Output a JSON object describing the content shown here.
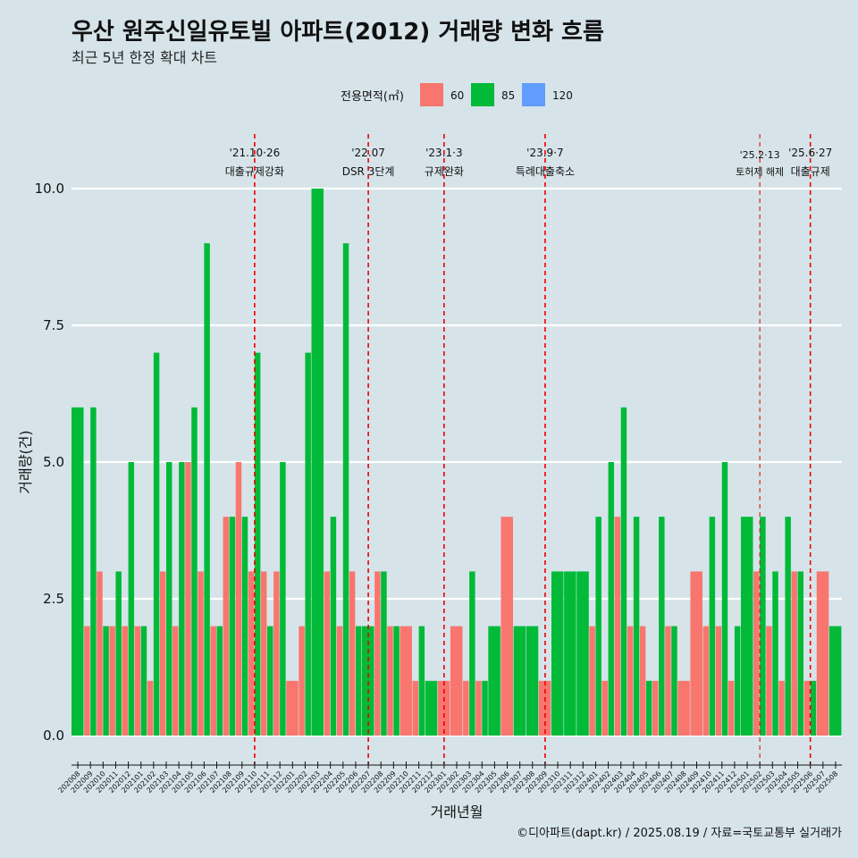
{
  "chart_data": {
    "type": "bar",
    "title": "우산 원주신일유토빌 아파트(2012) 거래량 변화 흐름",
    "subtitle": "최근 5년 한정 확대 차트",
    "xlabel": "거래년월",
    "ylabel": "거래량(건)",
    "ylim": [
      0,
      10.5
    ],
    "yticks": [
      "0.0",
      "2.5",
      "5.0",
      "7.5",
      "10.0"
    ],
    "ytick_values": [
      0,
      2.5,
      5,
      7.5,
      10
    ],
    "grid": true,
    "legend": {
      "title": "전용면적(㎡)",
      "placement": "top",
      "items": [
        {
          "name": "60",
          "color": "#f8766d"
        },
        {
          "name": "85",
          "color": "#00ba38"
        },
        {
          "name": "120",
          "color": "#619cff"
        }
      ]
    },
    "months": [
      "202008",
      "202009",
      "202010",
      "202011",
      "202012",
      "202101",
      "202102",
      "202103",
      "202104",
      "202105",
      "202106",
      "202107",
      "202108",
      "202109",
      "202110",
      "202111",
      "202112",
      "202201",
      "202202",
      "202203",
      "202204",
      "202205",
      "202206",
      "202207",
      "202208",
      "202209",
      "202210",
      "202211",
      "202212",
      "202301",
      "202302",
      "202303",
      "202304",
      "202305",
      "202306",
      "202307",
      "202308",
      "202309",
      "202310",
      "202311",
      "202312",
      "202401",
      "202402",
      "202403",
      "202404",
      "202405",
      "202406",
      "202407",
      "202408",
      "202409",
      "202410",
      "202411",
      "202412",
      "202501",
      "202502",
      "202503",
      "202504",
      "202505",
      "202506",
      "202507",
      "202508"
    ],
    "series": [
      {
        "name": "60",
        "values": [
          0,
          2,
          3,
          2,
          2,
          2,
          1,
          3,
          2,
          5,
          3,
          2,
          4,
          5,
          3,
          3,
          3,
          1,
          2,
          0,
          3,
          2,
          3,
          0,
          3,
          2,
          2,
          1,
          0,
          1,
          2,
          1,
          1,
          0,
          4,
          0,
          0,
          1,
          0,
          0,
          0,
          2,
          1,
          4,
          2,
          2,
          1,
          2,
          1,
          3,
          2,
          2,
          1,
          0,
          3,
          2,
          1,
          3,
          1,
          3,
          0
        ]
      },
      {
        "name": "85",
        "values": [
          6,
          6,
          2,
          3,
          5,
          2,
          7,
          5,
          5,
          6,
          9,
          2,
          4,
          4,
          7,
          2,
          5,
          0,
          7,
          10,
          4,
          9,
          2,
          2,
          3,
          2,
          0,
          2,
          1,
          0,
          0,
          3,
          1,
          2,
          0,
          2,
          2,
          0,
          3,
          3,
          3,
          4,
          5,
          6,
          4,
          1,
          4,
          2,
          0,
          0,
          4,
          5,
          2,
          4,
          4,
          3,
          4,
          3,
          1,
          0,
          2
        ]
      },
      {
        "name": "120",
        "values": [
          0,
          0,
          0,
          0,
          1,
          0,
          0,
          0,
          0,
          0,
          1,
          1,
          0,
          0,
          0,
          0,
          0,
          0,
          0,
          0,
          0,
          0,
          0,
          0,
          0,
          0,
          0,
          0,
          0,
          0,
          0,
          0,
          0,
          0,
          0,
          0,
          0,
          0,
          0,
          0,
          0,
          0,
          0,
          0,
          1,
          0,
          0,
          0,
          0,
          0,
          0,
          0,
          1,
          0,
          0,
          0,
          1,
          0,
          0,
          0,
          0
        ]
      }
    ],
    "annotations": [
      {
        "month": "202110",
        "date": "'21.10·26",
        "label": "대출규제강화"
      },
      {
        "month": "202207",
        "date": "'22.07",
        "label": "DSR 3단계"
      },
      {
        "month": "202301",
        "date": "'23.1·3",
        "label": "규제완화"
      },
      {
        "month": "202309",
        "date": "'23.9·7",
        "label": "특례대출축소"
      },
      {
        "month": "202502",
        "date": "'25.2·13",
        "label": "토허제 해제"
      },
      {
        "month": "202506",
        "date": "'25.6·27",
        "label": "대출규제"
      }
    ],
    "caption": "©디아파트(dapt.kr) / 2025.08.19 / 자료=국토교통부 실거래가"
  }
}
